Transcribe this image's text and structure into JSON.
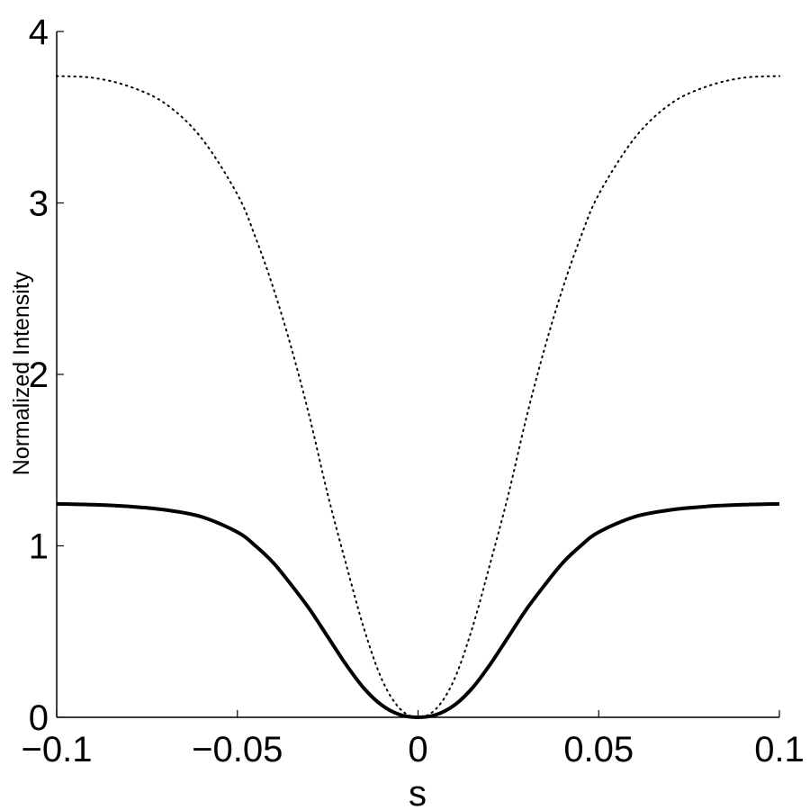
{
  "chart_data": {
    "type": "line",
    "title": "",
    "xlabel": "s",
    "ylabel": "Normalized Intensity",
    "xlim": [
      -0.1,
      0.1
    ],
    "ylim": [
      0,
      4
    ],
    "xticks": [
      -0.1,
      -0.05,
      0,
      0.05,
      0.1
    ],
    "xtick_labels": [
      "−0.1",
      "−0.05",
      "0",
      "0.05",
      "0.1"
    ],
    "yticks": [
      0,
      1,
      2,
      3,
      4
    ],
    "ytick_labels": [
      "0",
      "1",
      "2",
      "3",
      "4"
    ],
    "grid": false,
    "legend": "none",
    "series": [
      {
        "style": "solid",
        "color": "#000000",
        "x": [
          -0.1,
          -0.09,
          -0.08,
          -0.07,
          -0.06,
          -0.05,
          -0.045,
          -0.04,
          -0.035,
          -0.03,
          -0.025,
          -0.02,
          -0.015,
          -0.01,
          -0.005,
          0,
          0.005,
          0.01,
          0.015,
          0.02,
          0.025,
          0.03,
          0.035,
          0.04,
          0.045,
          0.05,
          0.06,
          0.07,
          0.08,
          0.09,
          0.1
        ],
        "y": [
          1.245,
          1.24,
          1.23,
          1.21,
          1.17,
          1.08,
          1.0,
          0.9,
          0.77,
          0.63,
          0.47,
          0.31,
          0.17,
          0.07,
          0.015,
          0,
          0.015,
          0.07,
          0.17,
          0.31,
          0.47,
          0.63,
          0.77,
          0.9,
          1.0,
          1.08,
          1.17,
          1.21,
          1.23,
          1.24,
          1.245
        ]
      },
      {
        "style": "dotted",
        "color": "#000000",
        "x": [
          -0.1,
          -0.09,
          -0.08,
          -0.07,
          -0.06,
          -0.05,
          -0.045,
          -0.04,
          -0.035,
          -0.03,
          -0.025,
          -0.02,
          -0.015,
          -0.01,
          -0.005,
          0,
          0.005,
          0.01,
          0.015,
          0.02,
          0.025,
          0.03,
          0.035,
          0.04,
          0.045,
          0.05,
          0.06,
          0.07,
          0.08,
          0.09,
          0.1
        ],
        "y": [
          3.74,
          3.73,
          3.68,
          3.58,
          3.38,
          3.05,
          2.8,
          2.5,
          2.15,
          1.75,
          1.3,
          0.9,
          0.52,
          0.22,
          0.05,
          0,
          0.05,
          0.22,
          0.52,
          0.9,
          1.3,
          1.75,
          2.15,
          2.5,
          2.8,
          3.05,
          3.38,
          3.58,
          3.68,
          3.73,
          3.74
        ]
      }
    ]
  }
}
